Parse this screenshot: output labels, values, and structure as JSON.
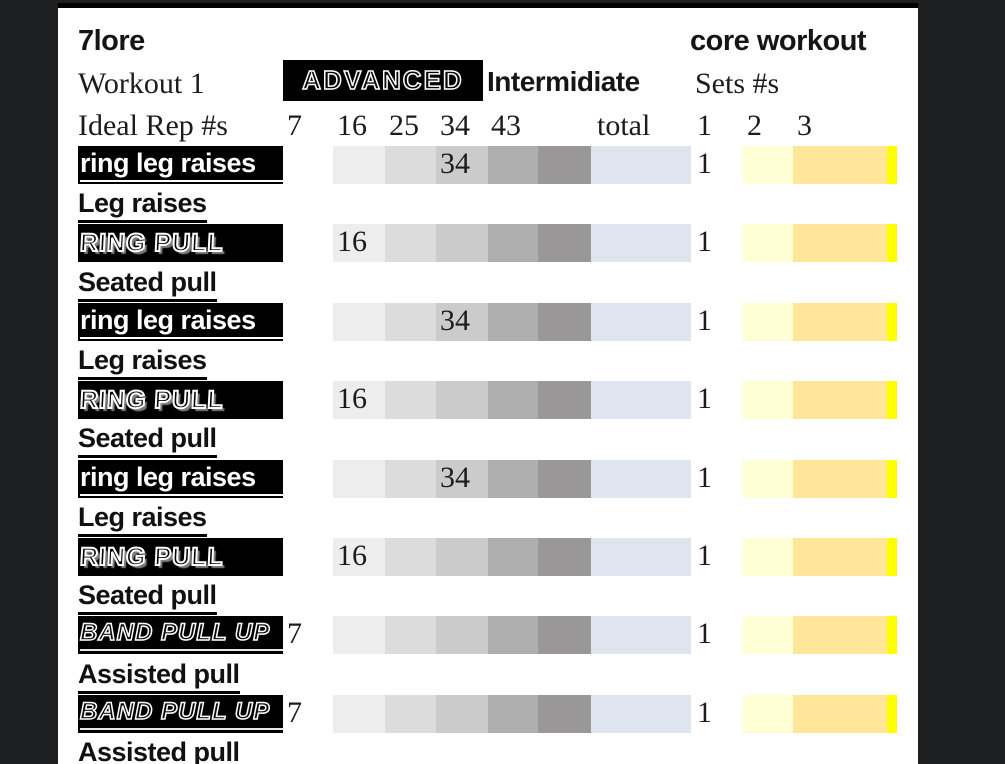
{
  "header": {
    "title_left": "7lore",
    "title_right": "core workout",
    "workout_label": "Workout 1",
    "badge_advanced": "ADVANCED",
    "level_label": "Intermidiate",
    "ideal_rep_label": "Ideal Rep #s",
    "sets_label": "Sets #s",
    "rep_columns": [
      "7",
      "16",
      "25",
      "34",
      "43"
    ],
    "total_label": "total",
    "set_columns": [
      "1",
      "2",
      "3"
    ]
  },
  "colors": {
    "desktop_bg": "#1e1f21",
    "sheet_bg": "#ffffff",
    "scale_grays": [
      "#ededed",
      "#dcdcdc",
      "#cbcbcb",
      "#afaeae",
      "#999797"
    ],
    "total_fill": "#dfe5ef",
    "set2_fill": "#ffffd6",
    "set3_fill": "#ffe699",
    "highlight_fill": "#ffff00",
    "label_box_bg": "#000000"
  },
  "rows": [
    {
      "style": "inverse",
      "label": "ring leg raises",
      "value": "34",
      "value_col": "34",
      "set1": "1"
    },
    {
      "style": "plain",
      "label": "Leg raises"
    },
    {
      "style": "graffiti",
      "label": "RING PULL",
      "value": "16",
      "value_col": "16",
      "set1": "1"
    },
    {
      "style": "plain",
      "label": "Seated pull"
    },
    {
      "style": "inverse",
      "label": "ring leg raises",
      "value": "34",
      "value_col": "34",
      "set1": "1"
    },
    {
      "style": "plain",
      "label": "Leg raises"
    },
    {
      "style": "graffiti",
      "label": "RING PULL",
      "value": "16",
      "value_col": "16",
      "set1": "1"
    },
    {
      "style": "plain",
      "label": "Seated pull"
    },
    {
      "style": "inverse",
      "label": "ring leg raises",
      "value": "34",
      "value_col": "34",
      "set1": "1"
    },
    {
      "style": "plain",
      "label": "Leg raises"
    },
    {
      "style": "graffiti",
      "label": "RING PULL",
      "value": "16",
      "value_col": "16",
      "set1": "1"
    },
    {
      "style": "plain",
      "label": "Seated pull"
    },
    {
      "style": "distress",
      "label": "BAND PULL UP",
      "value": "7",
      "value_col": "7",
      "set1": "1"
    },
    {
      "style": "plain",
      "label": "Assisted pull"
    },
    {
      "style": "distress",
      "label": "BAND PULL UP",
      "value": "7",
      "value_col": "7",
      "set1": "1"
    },
    {
      "style": "plain",
      "label": "Assisted pull"
    }
  ]
}
